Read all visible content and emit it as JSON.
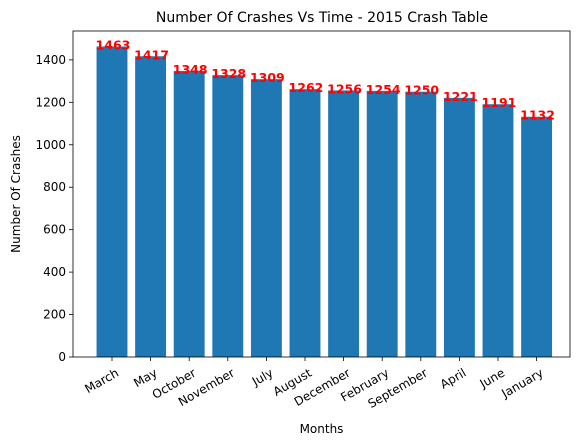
{
  "chart_data": {
    "type": "bar",
    "title": "Number Of Crashes Vs Time - 2015 Crash Table",
    "xlabel": "Months",
    "ylabel": "Number Of Crashes",
    "categories": [
      "March",
      "May",
      "October",
      "November",
      "July",
      "August",
      "December",
      "February",
      "September",
      "April",
      "June",
      "January"
    ],
    "values": [
      1463,
      1417,
      1348,
      1328,
      1309,
      1262,
      1256,
      1254,
      1250,
      1221,
      1191,
      1132
    ],
    "data_labels": [
      "1463",
      "1417",
      "1348",
      "1328",
      "1309",
      "1262",
      "1256",
      "1254",
      "1250",
      "1221",
      "1191",
      "1132"
    ],
    "y_ticks": [
      0,
      200,
      400,
      600,
      800,
      1000,
      1200,
      1400
    ],
    "ylim": [
      0,
      1536
    ],
    "bar_color": "#1f77b4",
    "label_color": "#ff0000",
    "grid": false,
    "legend": "none"
  }
}
